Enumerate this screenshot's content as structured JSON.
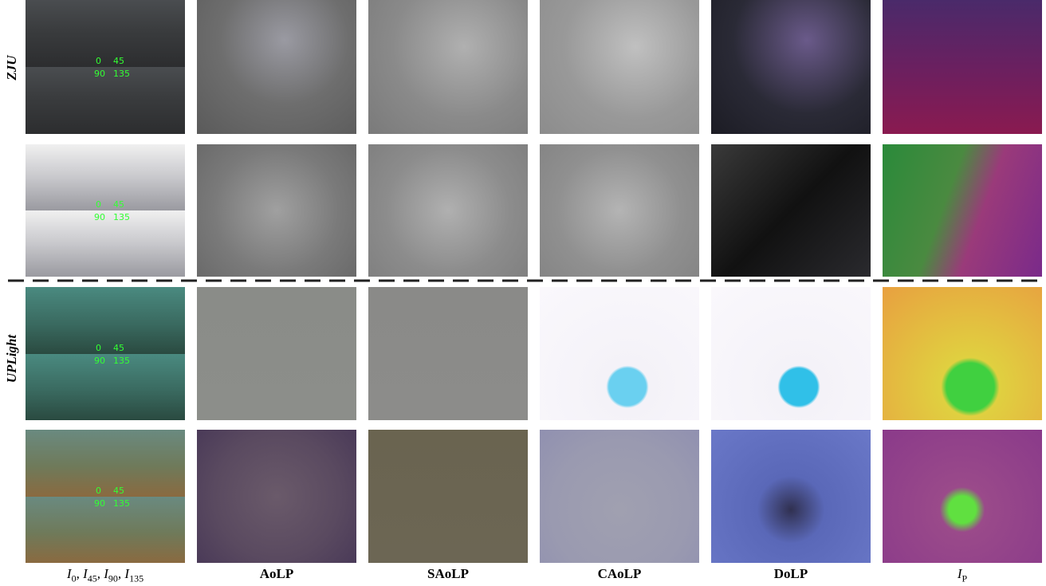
{
  "groups": [
    {
      "label": "ZJU"
    },
    {
      "label": "UPLight"
    }
  ],
  "rows": [
    {
      "angle_labels": [
        "0",
        "45",
        "90",
        "135"
      ]
    },
    {
      "angle_labels": [
        "0",
        "45",
        "90",
        "135"
      ]
    },
    {
      "angle_labels": [
        "0",
        "45",
        "90",
        "135"
      ]
    },
    {
      "angle_labels": [
        "0",
        "45",
        "90",
        "135"
      ]
    }
  ],
  "columns": [
    {
      "label": [
        {
          "text": "I",
          "sub": "0"
        },
        {
          "text": ", I",
          "sub": "45"
        },
        {
          "text": ", I",
          "sub": "90"
        },
        {
          "text": ", I",
          "sub": "135"
        }
      ]
    },
    {
      "label": [
        {
          "text": "AoLP"
        }
      ]
    },
    {
      "label": [
        {
          "text": "SAoLP"
        }
      ]
    },
    {
      "label": [
        {
          "text": "CAoLP"
        }
      ]
    },
    {
      "label": [
        {
          "text": "DoLP"
        }
      ]
    },
    {
      "label": [
        {
          "text": "I",
          "sub": "P"
        }
      ]
    }
  ]
}
